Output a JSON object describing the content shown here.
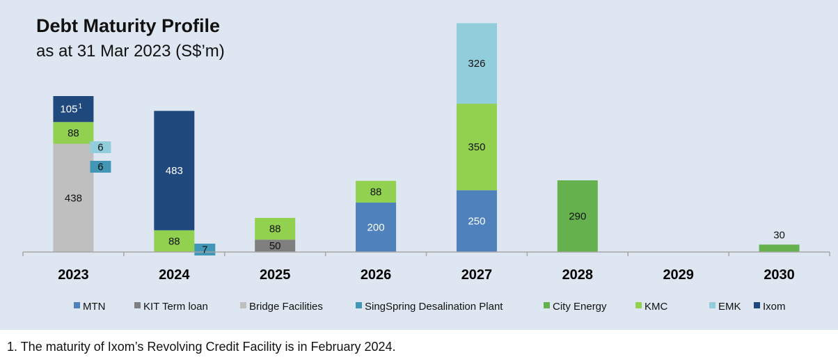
{
  "title": "Debt Maturity Profile",
  "subtitle": "as at 31 Mar 2023 (S$’m)",
  "footnote": "1. The maturity of Ixom’s Revolving Credit Facility is in February 2024.",
  "chart_data": {
    "type": "bar",
    "stacked": true,
    "categories": [
      "2023",
      "2024",
      "2025",
      "2026",
      "2027",
      "2028",
      "2029",
      "2030"
    ],
    "series": [
      {
        "name": "MTN",
        "color": "#4f81bd",
        "values": [
          0,
          0,
          0,
          200,
          250,
          0,
          0,
          0
        ]
      },
      {
        "name": "KIT Term loan",
        "color": "#7f7f7f",
        "values": [
          0,
          0,
          50,
          0,
          0,
          0,
          0,
          0
        ]
      },
      {
        "name": "Bridge Facilities",
        "color": "#bfbfbf",
        "values": [
          438,
          0,
          0,
          0,
          0,
          0,
          0,
          0
        ]
      },
      {
        "name": "SingSpring Desalination Plant",
        "color": "#4197b5",
        "values": [
          6,
          7,
          0,
          0,
          0,
          0,
          0,
          0
        ]
      },
      {
        "name": "City Energy",
        "color": "#64b14e",
        "values": [
          0,
          0,
          0,
          0,
          0,
          290,
          0,
          30
        ]
      },
      {
        "name": "KMC",
        "color": "#92d050",
        "values": [
          88,
          88,
          88,
          88,
          350,
          0,
          0,
          0
        ]
      },
      {
        "name": "EMK",
        "color": "#92cddc",
        "values": [
          6,
          0,
          0,
          0,
          326,
          0,
          0,
          0
        ]
      },
      {
        "name": "Ixom",
        "color": "#1f497d",
        "values": [
          105,
          483,
          0,
          0,
          0,
          0,
          0,
          0
        ]
      }
    ],
    "data_labels": [
      {
        "category": "2023",
        "series": "Bridge Facilities",
        "text": "438"
      },
      {
        "category": "2023",
        "series": "KMC",
        "text": "88"
      },
      {
        "category": "2023",
        "series": "Ixom",
        "text": "105",
        "superscript": "1"
      },
      {
        "category": "2023",
        "series": "EMK",
        "text": "6"
      },
      {
        "category": "2023",
        "series": "SingSpring Desalination Plant",
        "text": "6"
      },
      {
        "category": "2024",
        "series": "Ixom",
        "text": "483"
      },
      {
        "category": "2024",
        "series": "KMC",
        "text": "88"
      },
      {
        "category": "2024",
        "series": "SingSpring Desalination Plant",
        "text": "7"
      },
      {
        "category": "2025",
        "series": "KIT Term loan",
        "text": "50"
      },
      {
        "category": "2025",
        "series": "KMC",
        "text": "88"
      },
      {
        "category": "2026",
        "series": "MTN",
        "text": "200"
      },
      {
        "category": "2026",
        "series": "KMC",
        "text": "88"
      },
      {
        "category": "2027",
        "series": "MTN",
        "text": "250"
      },
      {
        "category": "2027",
        "series": "KMC",
        "text": "350"
      },
      {
        "category": "2027",
        "series": "EMK",
        "text": "326"
      },
      {
        "category": "2028",
        "series": "City Energy",
        "text": "290"
      },
      {
        "category": "2030",
        "series": "City Energy",
        "text": "30"
      }
    ],
    "side_boxes": {
      "2023": [
        "EMK",
        "SingSpring Desalination Plant"
      ],
      "2024": [
        "SingSpring Desalination Plant"
      ]
    },
    "legend": "bottom",
    "grid": false,
    "ylim": [
      0,
      900
    ]
  }
}
